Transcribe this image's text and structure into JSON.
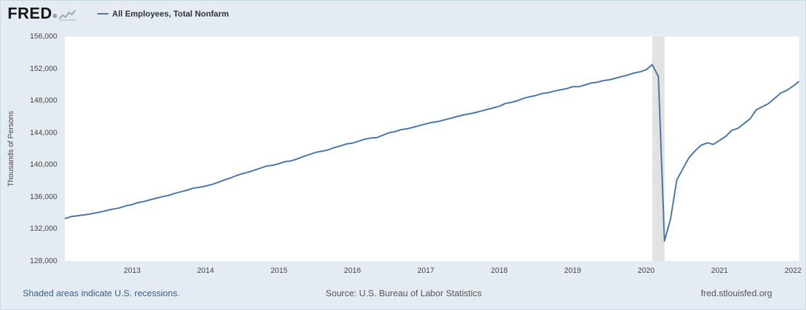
{
  "header": {
    "logo_text": "FRED",
    "logo_reg": "®",
    "legend": {
      "series_label": "All Employees, Total Nonfarm"
    }
  },
  "footer": {
    "recession_note": "Shaded areas indicate U.S. recessions.",
    "source": "Source: U.S. Bureau of Labor Statistics",
    "site": "fred.stlouisfed.org"
  },
  "colors": {
    "line": "#4572a7",
    "background": "#e4ebf2",
    "plot_background": "#ffffff",
    "recession_band": "#e2e2e2",
    "link": "#34618e",
    "axis_text": "#444444"
  },
  "chart_data": {
    "type": "line",
    "title": "All Employees, Total Nonfarm",
    "ylabel": "Thousands of Persons",
    "xlabel": "",
    "grid": false,
    "legend_position": "top-left",
    "x_range": [
      2012.0833,
      2022.0833
    ],
    "y_range": [
      128000,
      156000
    ],
    "y_ticks": [
      128000,
      132000,
      136000,
      140000,
      144000,
      148000,
      152000,
      156000
    ],
    "x_ticks": [
      2013,
      2014,
      2015,
      2016,
      2017,
      2018,
      2019,
      2020,
      2021,
      2022
    ],
    "frequency": "monthly",
    "recession_bands": [
      {
        "start": 2020.0833,
        "end": 2020.25
      }
    ],
    "series": [
      {
        "name": "All Employees, Total Nonfarm",
        "units": "Thousands of Persons",
        "start_period": "2012-02",
        "end_period": "2022-02",
        "start_decimal_year": 2012.0833,
        "values": [
          133300,
          133550,
          133650,
          133750,
          133850,
          134000,
          134150,
          134350,
          134500,
          134650,
          134900,
          135050,
          135300,
          135450,
          135650,
          135850,
          136050,
          136200,
          136450,
          136650,
          136850,
          137100,
          137200,
          137350,
          137550,
          137800,
          138100,
          138350,
          138650,
          138900,
          139100,
          139350,
          139600,
          139850,
          139950,
          140150,
          140400,
          140500,
          140750,
          141050,
          141300,
          141550,
          141700,
          141850,
          142150,
          142350,
          142600,
          142700,
          142950,
          143200,
          143350,
          143400,
          143700,
          144000,
          144150,
          144400,
          144500,
          144700,
          144900,
          145100,
          145300,
          145400,
          145600,
          145800,
          146000,
          146200,
          146350,
          146500,
          146700,
          146900,
          147100,
          147300,
          147650,
          147800,
          148000,
          148300,
          148500,
          148650,
          148900,
          149000,
          149200,
          149350,
          149500,
          149750,
          149750,
          149950,
          150200,
          150300,
          150500,
          150600,
          150800,
          151000,
          151200,
          151450,
          151600,
          151850,
          152500,
          151000,
          130500,
          133300,
          138100,
          139500,
          140900,
          141750,
          142450,
          142750,
          142550,
          143050,
          143550,
          144300,
          144550,
          145150,
          145750,
          146850,
          147250,
          147650,
          148300,
          148950,
          149300,
          149800,
          150400
        ]
      }
    ]
  }
}
